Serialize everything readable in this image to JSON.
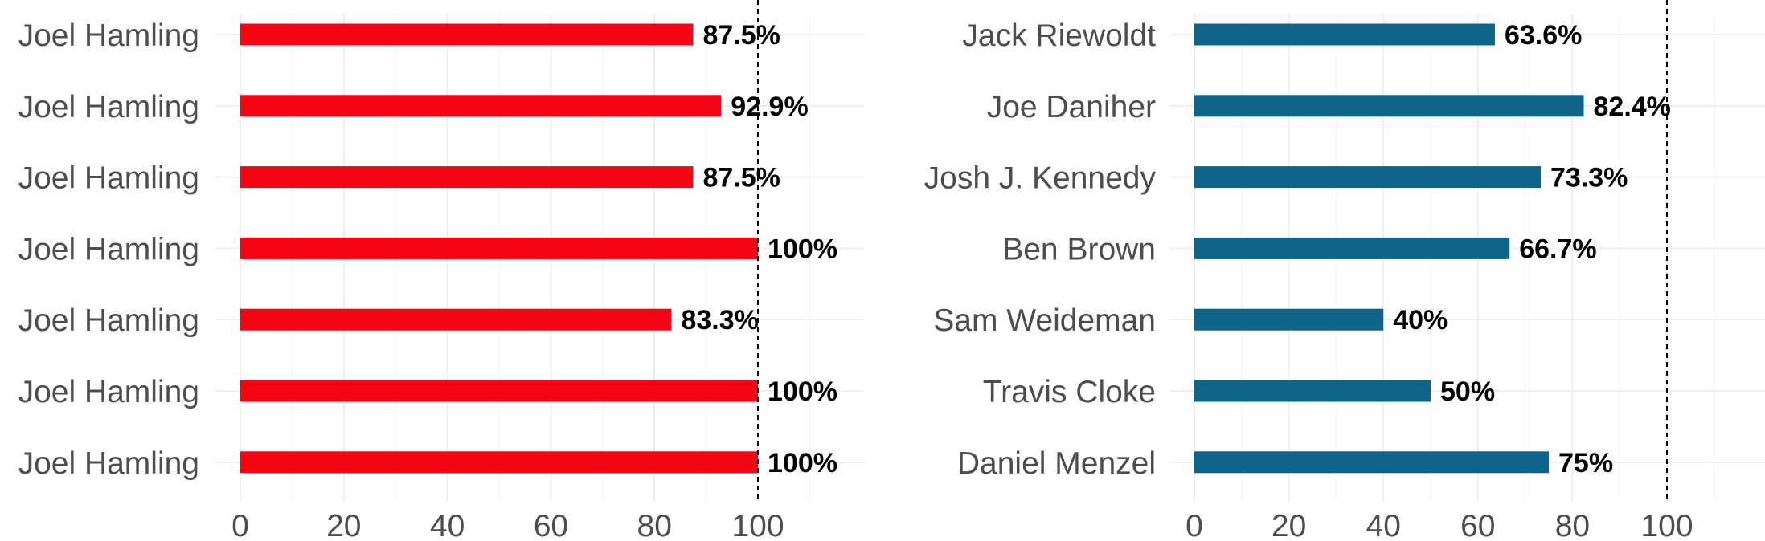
{
  "chart_data": [
    {
      "type": "bar",
      "orientation": "horizontal",
      "categories": [
        "Joel Hamling",
        "Joel Hamling",
        "Joel Hamling",
        "Joel Hamling",
        "Joel Hamling",
        "Joel Hamling",
        "Joel Hamling"
      ],
      "values": [
        87.5,
        92.9,
        87.5,
        100,
        83.3,
        100,
        100
      ],
      "value_labels": [
        "87.5%",
        "92.9%",
        "87.5%",
        "100%",
        "83.3%",
        "100%",
        "100%"
      ],
      "xlim": [
        0,
        120
      ],
      "x_ticks": [
        0,
        20,
        40,
        60,
        80,
        100
      ],
      "x_tick_labels": [
        "0",
        "20",
        "40",
        "60",
        "80",
        "100"
      ],
      "reference_line": 100,
      "bar_color": "#f50414",
      "grid": true
    },
    {
      "type": "bar",
      "orientation": "horizontal",
      "categories": [
        "Jack Riewoldt",
        "Joe Daniher",
        "Josh J. Kennedy",
        "Ben Brown",
        "Sam Weideman",
        "Travis Cloke",
        "Daniel Menzel"
      ],
      "values": [
        63.6,
        82.4,
        73.3,
        66.7,
        40,
        50,
        75
      ],
      "value_labels": [
        "63.6%",
        "82.4%",
        "73.3%",
        "66.7%",
        "40%",
        "50%",
        "75%"
      ],
      "xlim": [
        0,
        120
      ],
      "x_ticks": [
        0,
        20,
        40,
        60,
        80,
        100
      ],
      "x_tick_labels": [
        "0",
        "20",
        "40",
        "60",
        "80",
        "100"
      ],
      "reference_line": 100,
      "bar_color": "#0e6589",
      "grid": true
    }
  ]
}
